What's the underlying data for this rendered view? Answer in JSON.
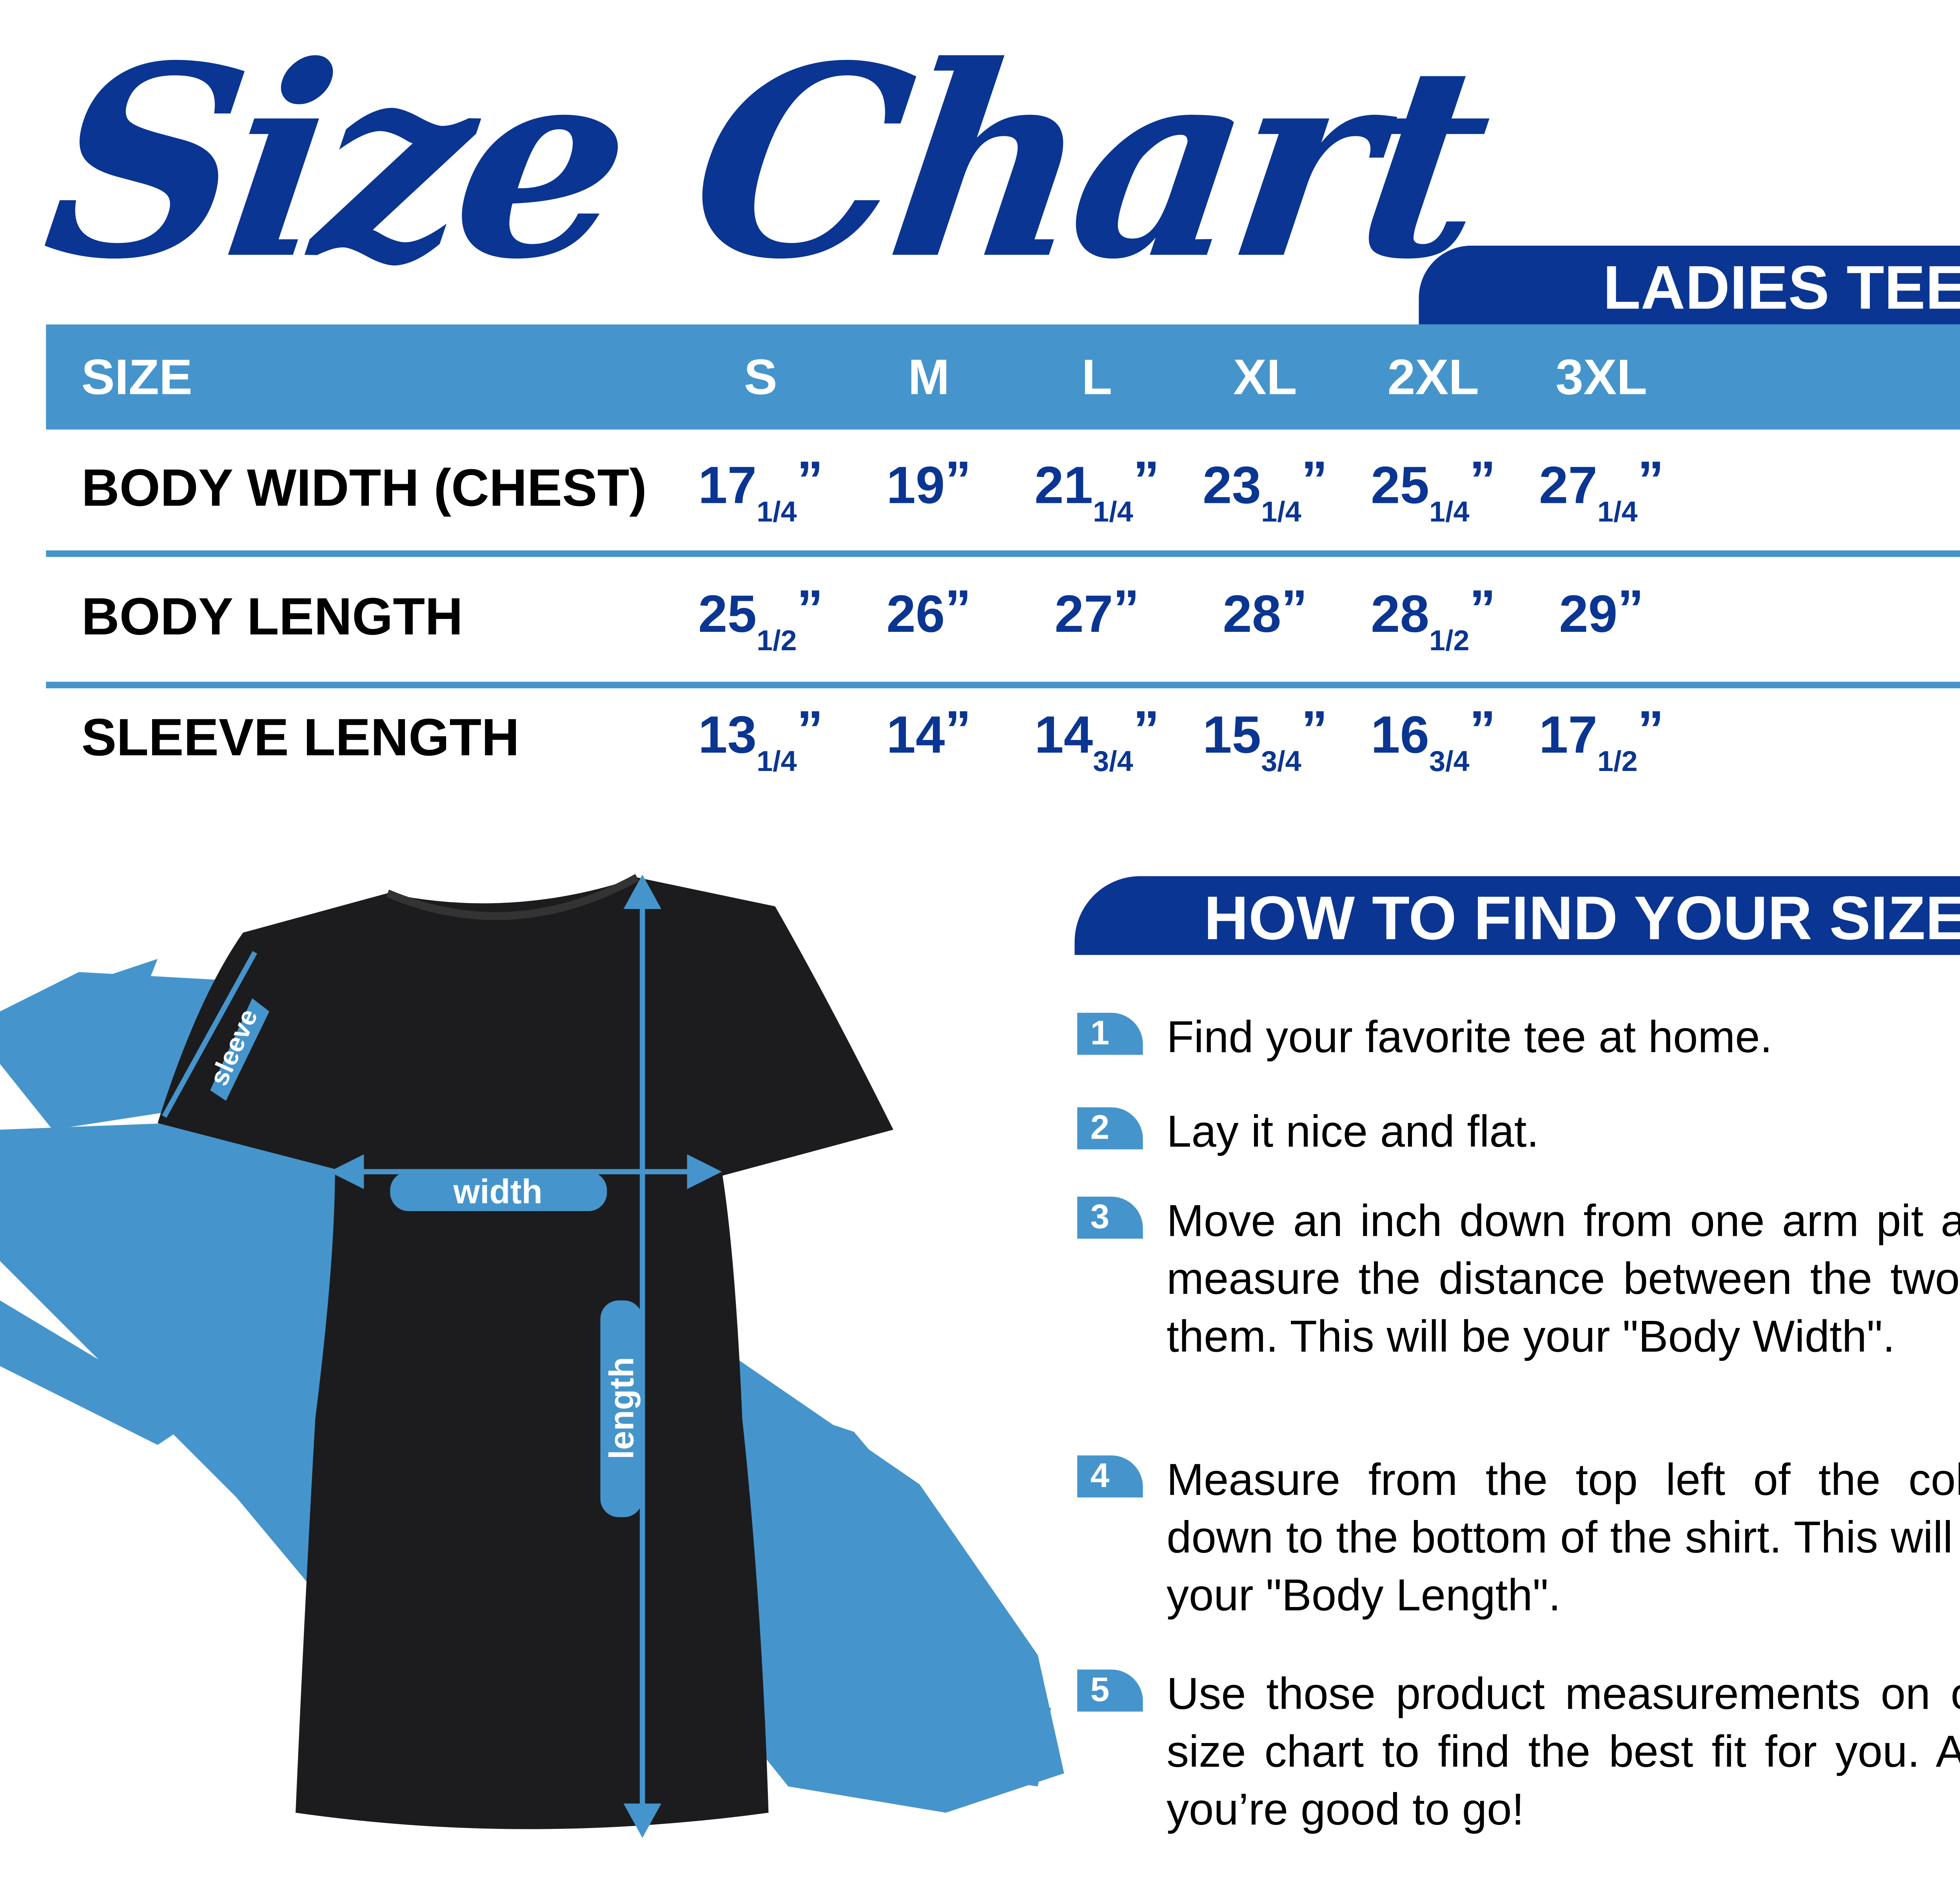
{
  "title": "Size Chart",
  "product_tab": "LADIES TEE",
  "colors": {
    "dark_blue": "#0a3592",
    "light_blue": "#4595cc",
    "shirt": "#1c1c1e"
  },
  "table": {
    "header": {
      "label": "SIZE",
      "sizes": [
        "S",
        "M",
        "L",
        "XL",
        "2XL",
        "3XL"
      ]
    },
    "rows": [
      {
        "label": "BODY WIDTH (CHEST)",
        "values": [
          {
            "whole": "17",
            "frac": "1/4"
          },
          {
            "whole": "19",
            "frac": ""
          },
          {
            "whole": "21",
            "frac": "1/4"
          },
          {
            "whole": "23",
            "frac": "1/4"
          },
          {
            "whole": "25",
            "frac": "1/4"
          },
          {
            "whole": "27",
            "frac": "1/4"
          }
        ]
      },
      {
        "label": "BODY LENGTH",
        "values": [
          {
            "whole": "25",
            "frac": "1/2"
          },
          {
            "whole": "26",
            "frac": ""
          },
          {
            "whole": "27",
            "frac": ""
          },
          {
            "whole": "28",
            "frac": ""
          },
          {
            "whole": "28",
            "frac": "1/2"
          },
          {
            "whole": "29",
            "frac": ""
          }
        ]
      },
      {
        "label": "SLEEVE LENGTH",
        "values": [
          {
            "whole": "13",
            "frac": "1/4"
          },
          {
            "whole": "14",
            "frac": ""
          },
          {
            "whole": "14",
            "frac": "3/4"
          },
          {
            "whole": "15",
            "frac": "3/4"
          },
          {
            "whole": "16",
            "frac": "3/4"
          },
          {
            "whole": "17",
            "frac": "1/2"
          }
        ]
      }
    ],
    "unit_mark": "”"
  },
  "diagram": {
    "sleeve_label": "sleeve",
    "width_label": "width",
    "length_label": "length"
  },
  "how_to": {
    "title": "HOW TO FIND YOUR SIZE",
    "steps": [
      {
        "num": "1",
        "text": "Find your favorite tee at home."
      },
      {
        "num": "2",
        "text": "Lay it nice and flat."
      },
      {
        "num": "3",
        "text": "Move an inch down from one arm pit and measure the distance between the two of them. This will be your \"Body Width\"."
      },
      {
        "num": "4",
        "text": "Measure from the top left of the collar down to the bottom of the shirt. This will be your \"Body Length\"."
      },
      {
        "num": "5",
        "text": "Use those product measurements on our size chart to find the best fit for you. And you’re good to go!"
      }
    ]
  }
}
